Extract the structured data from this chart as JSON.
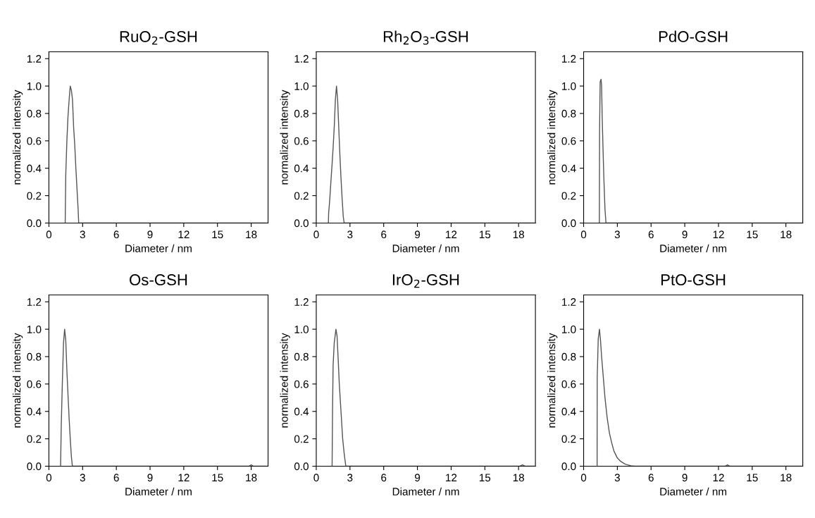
{
  "chart_data": [
    {
      "type": "line",
      "title": "RuO$_{2}$-GSH",
      "xlabel": "Diameter / nm",
      "ylabel": "normalized intensity",
      "xlim": [
        0,
        19.5
      ],
      "ylim": [
        0,
        1.25
      ],
      "xticks": [
        0,
        3,
        6,
        9,
        12,
        15,
        18
      ],
      "yticks": [
        {
          "value": 0,
          "label": "0.0"
        },
        {
          "value": 0.2,
          "label": "0.2"
        },
        {
          "value": 0.4,
          "label": "0.4"
        },
        {
          "value": 0.6,
          "label": "0.6"
        },
        {
          "value": 0.8,
          "label": "0.8"
        },
        {
          "value": 1.0,
          "label": "1.0"
        },
        {
          "value": 1.2,
          "label": "1.2"
        }
      ],
      "series": [
        {
          "color": "#555555",
          "x": [
            1.45,
            1.5,
            1.6,
            1.7,
            1.8,
            1.9,
            2.0,
            2.1,
            2.2,
            2.3,
            2.4,
            2.5,
            2.6,
            2.65,
            19.4
          ],
          "values": [
            0,
            0.35,
            0.6,
            0.78,
            0.9,
            1.0,
            0.97,
            0.9,
            0.7,
            0.57,
            0.4,
            0.25,
            0.1,
            0,
            0
          ]
        }
      ]
    },
    {
      "type": "line",
      "title": "Rh$_{2}$O$_{3}$-GSH",
      "xlabel": "Diameter / nm",
      "ylabel": "normalized intensity",
      "xlim": [
        0,
        19.5
      ],
      "ylim": [
        0,
        1.25
      ],
      "xticks": [
        0,
        3,
        6,
        9,
        12,
        15,
        18
      ],
      "yticks": [
        {
          "value": 0,
          "label": "0.0"
        },
        {
          "value": 0.2,
          "label": "0.2"
        },
        {
          "value": 0.4,
          "label": "0.4"
        },
        {
          "value": 0.6,
          "label": "0.6"
        },
        {
          "value": 0.8,
          "label": "0.8"
        },
        {
          "value": 1.0,
          "label": "1.0"
        },
        {
          "value": 1.2,
          "label": "1.2"
        }
      ],
      "series": [
        {
          "color": "#555555",
          "x": [
            1.08,
            1.1,
            1.2,
            1.3,
            1.4,
            1.5,
            1.6,
            1.7,
            1.8,
            1.9,
            2.0,
            2.1,
            2.2,
            2.3,
            2.4,
            2.48,
            19.4
          ],
          "values": [
            0,
            0.07,
            0.17,
            0.3,
            0.42,
            0.55,
            0.7,
            0.9,
            1.0,
            0.9,
            0.7,
            0.5,
            0.33,
            0.18,
            0.05,
            0,
            0
          ]
        }
      ]
    },
    {
      "type": "line",
      "title": "PdO-GSH",
      "xlabel": "Diameter / nm",
      "ylabel": "normalized intensity",
      "xlim": [
        0,
        19.5
      ],
      "ylim": [
        0,
        1.25
      ],
      "xticks": [
        0,
        3,
        6,
        9,
        12,
        15,
        18
      ],
      "yticks": [
        {
          "value": 0,
          "label": "0.0"
        },
        {
          "value": 0.2,
          "label": "0.2"
        },
        {
          "value": 0.4,
          "label": "0.4"
        },
        {
          "value": 0.6,
          "label": "0.6"
        },
        {
          "value": 0.8,
          "label": "0.8"
        },
        {
          "value": 1.0,
          "label": "1.0"
        },
        {
          "value": 1.2,
          "label": "1.2"
        }
      ],
      "series": [
        {
          "color": "#555555",
          "x": [
            1.4,
            1.42,
            1.47,
            1.55,
            1.6,
            1.65,
            1.72,
            1.8,
            1.9,
            1.99,
            19.4
          ],
          "values": [
            0,
            0.68,
            1.03,
            1.05,
            1.0,
            0.78,
            0.56,
            0.33,
            0.1,
            0,
            0
          ]
        }
      ]
    },
    {
      "type": "line",
      "title": "Os-GSH",
      "xlabel": "Diameter / nm",
      "ylabel": "normalized intensity",
      "xlim": [
        0,
        19.5
      ],
      "ylim": [
        0,
        1.25
      ],
      "xticks": [
        0,
        3,
        6,
        9,
        12,
        15,
        18
      ],
      "yticks": [
        {
          "value": 0,
          "label": "0.0"
        },
        {
          "value": 0.2,
          "label": "0.2"
        },
        {
          "value": 0.4,
          "label": "0.4"
        },
        {
          "value": 0.6,
          "label": "0.6"
        },
        {
          "value": 0.8,
          "label": "0.8"
        },
        {
          "value": 1.0,
          "label": "1.0"
        },
        {
          "value": 1.2,
          "label": "1.2"
        }
      ],
      "series": [
        {
          "color": "#555555",
          "x": [
            1.04,
            1.1,
            1.2,
            1.3,
            1.4,
            1.5,
            1.6,
            1.7,
            1.8,
            1.9,
            2.0,
            2.09,
            17.8,
            18.0,
            18.2,
            19.4
          ],
          "values": [
            0,
            0.3,
            0.62,
            0.9,
            1.0,
            0.92,
            0.7,
            0.52,
            0.35,
            0.2,
            0.07,
            0,
            0,
            0.01,
            0,
            0
          ]
        }
      ]
    },
    {
      "type": "line",
      "title": "IrO$_{2}$-GSH",
      "xlabel": "Diameter / nm",
      "ylabel": "normalized intensity",
      "xlim": [
        0,
        19.5
      ],
      "ylim": [
        0,
        1.25
      ],
      "xticks": [
        0,
        3,
        6,
        9,
        12,
        15,
        18
      ],
      "yticks": [
        {
          "value": 0,
          "label": "0.0"
        },
        {
          "value": 0.2,
          "label": "0.2"
        },
        {
          "value": 0.4,
          "label": "0.4"
        },
        {
          "value": 0.6,
          "label": "0.6"
        },
        {
          "value": 0.8,
          "label": "0.8"
        },
        {
          "value": 1.0,
          "label": "1.0"
        },
        {
          "value": 1.2,
          "label": "1.2"
        }
      ],
      "series": [
        {
          "color": "#555555",
          "x": [
            1.41,
            1.45,
            1.5,
            1.6,
            1.75,
            1.85,
            1.95,
            2.05,
            2.2,
            2.35,
            2.5,
            2.63,
            18.1,
            18.35,
            18.6,
            19.4
          ],
          "values": [
            0,
            0.42,
            0.74,
            0.9,
            1.0,
            0.95,
            0.78,
            0.6,
            0.4,
            0.2,
            0.08,
            0,
            0,
            0.01,
            0,
            0
          ]
        }
      ]
    },
    {
      "type": "line",
      "title": "PtO-GSH",
      "xlabel": "Diameter / nm",
      "ylabel": "normalized intensity",
      "xlim": [
        0,
        19.5
      ],
      "ylim": [
        0,
        1.25
      ],
      "xticks": [
        0,
        3,
        6,
        9,
        12,
        15,
        18
      ],
      "yticks": [
        {
          "value": 0,
          "label": "0.0"
        },
        {
          "value": 0.2,
          "label": "0.2"
        },
        {
          "value": 0.4,
          "label": "0.4"
        },
        {
          "value": 0.6,
          "label": "0.6"
        },
        {
          "value": 0.8,
          "label": "0.8"
        },
        {
          "value": 1.0,
          "label": "1.0"
        },
        {
          "value": 1.2,
          "label": "1.2"
        }
      ],
      "series": [
        {
          "color": "#555555",
          "x": [
            1.2,
            1.21,
            1.3,
            1.41,
            1.5,
            1.6,
            1.75,
            1.9,
            2.1,
            2.3,
            2.5,
            2.7,
            3.0,
            3.3,
            3.7,
            4.2,
            4.5,
            12.6,
            12.8,
            13.0,
            19.4
          ],
          "values": [
            0,
            0.65,
            0.93,
            1.0,
            0.92,
            0.8,
            0.65,
            0.5,
            0.35,
            0.24,
            0.17,
            0.11,
            0.06,
            0.035,
            0.015,
            0.003,
            0,
            0,
            0.01,
            0,
            0
          ]
        }
      ]
    }
  ]
}
